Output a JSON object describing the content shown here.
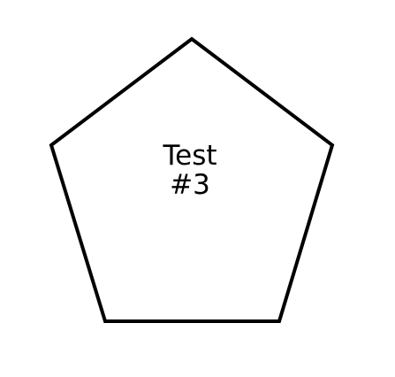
{
  "diagram": {
    "shape": "pentagon",
    "stroke_color": "#000000",
    "fill_color": "#ffffff",
    "label_lines": [
      "Test",
      "#3"
    ]
  }
}
